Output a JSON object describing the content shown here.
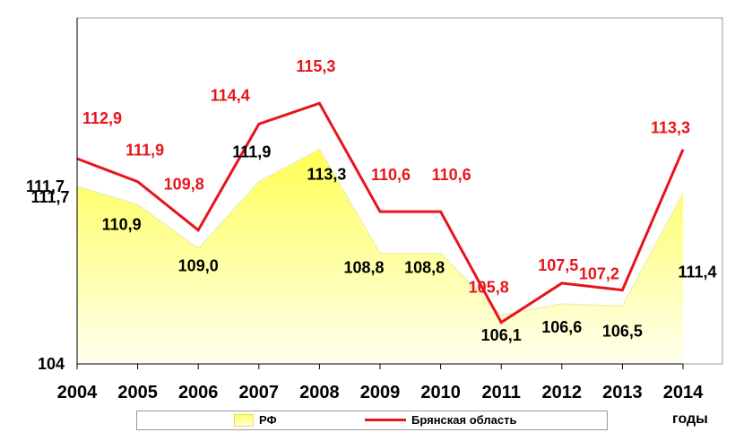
{
  "chart_data": {
    "type": "area",
    "categories": [
      "2004",
      "2005",
      "2006",
      "2007",
      "2008",
      "2009",
      "2010",
      "2011",
      "2012",
      "2013",
      "2014"
    ],
    "series": [
      {
        "name": "РФ",
        "type": "area",
        "color": "#ffff66",
        "values": [
          111.7,
          110.9,
          109.0,
          111.9,
          113.3,
          108.8,
          108.8,
          106.1,
          106.6,
          106.5,
          111.4
        ],
        "labels": [
          "111,7",
          "110,9",
          "109,0",
          "111,9",
          "113,3",
          "108,8",
          "108,8",
          "106,1",
          "106,6",
          "106,5",
          "111,4"
        ]
      },
      {
        "name": "Брянская область",
        "type": "line",
        "color": "#e8141b",
        "values": [
          112.9,
          111.9,
          109.8,
          114.4,
          115.3,
          110.6,
          110.6,
          105.8,
          107.5,
          107.2,
          113.3
        ],
        "labels": [
          "112,9",
          "111,9",
          "109,8",
          "114,4",
          "115,3",
          "110,6",
          "110,6",
          "105,8",
          "107,5",
          "107,2",
          "113,3"
        ]
      }
    ],
    "xlabel": "годы",
    "ylim": [
      104,
      119
    ],
    "yticks": [
      "104",
      "111,7"
    ],
    "grid": false,
    "legend": "bottom"
  },
  "legend": {
    "rf": "РФ",
    "bryansk": "Брянская область"
  },
  "colors": {
    "line": "#e8141b",
    "area_top": "#ffff66",
    "area_bottom": "#ffffe0"
  }
}
